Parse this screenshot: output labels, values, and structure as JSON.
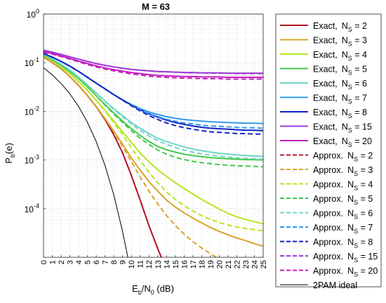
{
  "chart_data": {
    "type": "line",
    "title": "M = 63",
    "xlabel_main": "E",
    "xlabel_sub1": "b",
    "xlabel_mid": "/N",
    "xlabel_sub2": "0",
    "xlabel_tail": " (dB)",
    "ylabel_main": "P",
    "ylabel_sub": "b",
    "ylabel_tail": "(e)",
    "x_scale": "linear",
    "y_scale": "log",
    "xlim": [
      0,
      25
    ],
    "ylim": [
      1e-05,
      1
    ],
    "xticks": [
      0,
      1,
      2,
      3,
      4,
      5,
      6,
      7,
      8,
      9,
      10,
      11,
      12,
      13,
      14,
      15,
      16,
      17,
      18,
      19,
      20,
      21,
      22,
      23,
      24,
      25
    ],
    "yticks": [
      {
        "value": 1,
        "base": "10",
        "exp": "0"
      },
      {
        "value": 0.1,
        "base": "10",
        "exp": "-1"
      },
      {
        "value": 0.01,
        "base": "10",
        "exp": "-2"
      },
      {
        "value": 0.001,
        "base": "10",
        "exp": "-3"
      },
      {
        "value": 0.0001,
        "base": "10",
        "exp": "-4"
      }
    ],
    "grid": true,
    "minor_grid": true,
    "legend_position": "right, outside plot",
    "x": [
      0,
      1,
      2,
      3,
      4,
      5,
      6,
      7,
      8,
      9,
      10,
      11,
      12,
      13,
      14,
      15,
      16,
      17,
      18,
      19,
      20,
      21,
      22,
      23,
      24,
      25
    ],
    "series": [
      {
        "name": "Exact,",
        "ns": "2",
        "color": "#b2182b",
        "dash": "solid",
        "x": [
          0,
          1,
          2,
          3,
          4,
          5,
          6,
          7,
          8,
          9,
          10,
          11,
          12,
          13,
          14
        ],
        "y": [
          0.13,
          0.1,
          0.075,
          0.052,
          0.034,
          0.021,
          0.0125,
          0.0068,
          0.0033,
          0.0014,
          0.00048,
          0.00015,
          4.5e-05,
          1.5e-05,
          5.5e-06
        ]
      },
      {
        "name": "Exact,",
        "ns": "3",
        "color": "#d6a52a",
        "dash": "solid",
        "y": [
          0.13,
          0.1,
          0.075,
          0.052,
          0.034,
          0.021,
          0.0125,
          0.0071,
          0.0039,
          0.0021,
          0.0011,
          0.00062,
          0.00036,
          0.00023,
          0.00015,
          0.000108,
          8.2e-05,
          6.4e-05,
          5.1e-05,
          4.1e-05,
          3.4e-05,
          2.9e-05,
          2.5e-05,
          2.2e-05,
          1.9e-05,
          1.7e-05
        ]
      },
      {
        "name": "Exact,",
        "ns": "4",
        "color": "#b5e61d",
        "dash": "solid",
        "y": [
          0.14,
          0.11,
          0.083,
          0.06,
          0.041,
          0.027,
          0.017,
          0.0104,
          0.0063,
          0.0038,
          0.0023,
          0.0014,
          0.00092,
          0.00063,
          0.00046,
          0.00034,
          0.00026,
          0.0002,
          0.000155,
          0.000122,
          9.8e-05,
          8e-05,
          6.8e-05,
          6e-05,
          5.4e-05,
          4.9e-05
        ]
      },
      {
        "name": "Exact,",
        "ns": "5",
        "color": "#3fc94a",
        "dash": "solid",
        "y": [
          0.145,
          0.115,
          0.089,
          0.066,
          0.047,
          0.032,
          0.021,
          0.0138,
          0.0092,
          0.0063,
          0.0044,
          0.0032,
          0.0024,
          0.0019,
          0.00162,
          0.00145,
          0.00132,
          0.00123,
          0.00117,
          0.00112,
          0.00109,
          0.00106,
          0.00104,
          0.00102,
          0.00101,
          0.001
        ]
      },
      {
        "name": "Exact,",
        "ns": "6",
        "color": "#6fd6c8",
        "dash": "solid",
        "y": [
          0.15,
          0.12,
          0.093,
          0.07,
          0.05,
          0.035,
          0.024,
          0.0163,
          0.0114,
          0.0081,
          0.0059,
          0.0045,
          0.0035,
          0.0028,
          0.0024,
          0.0021,
          0.00185,
          0.00168,
          0.00155,
          0.00145,
          0.00137,
          0.00132,
          0.00127,
          0.00124,
          0.00121,
          0.00119
        ]
      },
      {
        "name": "Exact,",
        "ns": "7",
        "color": "#2f9bf0",
        "dash": "solid",
        "y": [
          0.155,
          0.13,
          0.106,
          0.085,
          0.066,
          0.05,
          0.038,
          0.029,
          0.022,
          0.0172,
          0.0138,
          0.0114,
          0.0097,
          0.0086,
          0.0078,
          0.0072,
          0.0068,
          0.0065,
          0.0063,
          0.0061,
          0.006,
          0.0059,
          0.0058,
          0.0057,
          0.0057,
          0.0056
        ]
      },
      {
        "name": "Exact,",
        "ns": "8",
        "color": "#1024c8",
        "dash": "solid",
        "y": [
          0.155,
          0.13,
          0.106,
          0.085,
          0.066,
          0.05,
          0.038,
          0.029,
          0.022,
          0.0172,
          0.0135,
          0.0108,
          0.0089,
          0.0076,
          0.0066,
          0.0059,
          0.0054,
          0.005,
          0.0047,
          0.0045,
          0.0044,
          0.0043,
          0.0042,
          0.0041,
          0.0041,
          0.004
        ]
      },
      {
        "name": "Exact,",
        "ns": "15",
        "color": "#9b3cd8",
        "dash": "solid",
        "y": [
          0.18,
          0.165,
          0.148,
          0.132,
          0.118,
          0.106,
          0.096,
          0.088,
          0.082,
          0.077,
          0.073,
          0.07,
          0.068,
          0.066,
          0.065,
          0.064,
          0.063,
          0.063,
          0.062,
          0.062,
          0.062,
          0.061,
          0.061,
          0.061,
          0.061,
          0.061
        ]
      },
      {
        "name": "Exact,",
        "ns": "20",
        "color": "#c41fbf",
        "dash": "solid",
        "y": [
          0.17,
          0.155,
          0.138,
          0.122,
          0.108,
          0.096,
          0.086,
          0.078,
          0.072,
          0.067,
          0.063,
          0.06,
          0.057,
          0.055,
          0.054,
          0.053,
          0.052,
          0.052,
          0.051,
          0.051,
          0.051,
          0.05,
          0.05,
          0.05,
          0.05,
          0.05
        ]
      },
      {
        "name": "Approx.",
        "ns": "2",
        "color": "#b2182b",
        "dash": "dashed",
        "x": [
          0,
          1,
          2,
          3,
          4,
          5,
          6,
          7,
          8,
          9,
          10,
          11,
          12,
          13,
          14
        ],
        "y": [
          0.13,
          0.1,
          0.075,
          0.052,
          0.034,
          0.021,
          0.0125,
          0.0068,
          0.0033,
          0.0014,
          0.00048,
          0.00015,
          4.5e-05,
          1.5e-05,
          5.5e-06
        ]
      },
      {
        "name": "Approx.",
        "ns": "3",
        "color": "#d6a52a",
        "dash": "dashed",
        "x": [
          0,
          1,
          2,
          3,
          4,
          5,
          6,
          7,
          8,
          9,
          10,
          11,
          12,
          13,
          14,
          15,
          16,
          17,
          18,
          19,
          20,
          21,
          22
        ],
        "y": [
          0.13,
          0.1,
          0.075,
          0.052,
          0.034,
          0.021,
          0.0125,
          0.0071,
          0.0038,
          0.0019,
          0.00092,
          0.00045,
          0.00023,
          0.000125,
          7.2e-05,
          4.5e-05,
          3e-05,
          2.1e-05,
          1.55e-05,
          1.18e-05,
          9.3e-06,
          7.5e-06,
          6.2e-06
        ]
      },
      {
        "name": "Approx.",
        "ns": "4",
        "color": "#b5e61d",
        "dash": "dashed",
        "y": [
          0.14,
          0.11,
          0.083,
          0.06,
          0.041,
          0.027,
          0.017,
          0.0102,
          0.0059,
          0.0033,
          0.0018,
          0.00098,
          0.00056,
          0.00034,
          0.00022,
          0.000155,
          0.000115,
          9e-05,
          7.2e-05,
          6e-05,
          5.2e-05,
          4.6e-05,
          4.2e-05,
          3.9e-05,
          3.7e-05,
          3.5e-05
        ]
      },
      {
        "name": "Approx.",
        "ns": "5",
        "color": "#3fc94a",
        "dash": "dashed",
        "y": [
          0.145,
          0.115,
          0.089,
          0.066,
          0.047,
          0.032,
          0.021,
          0.0135,
          0.0088,
          0.0059,
          0.004,
          0.0028,
          0.0021,
          0.0016,
          0.00132,
          0.00114,
          0.00102,
          0.00094,
          0.00088,
          0.00084,
          0.0008,
          0.00078,
          0.00076,
          0.00075,
          0.00074,
          0.00073
        ]
      },
      {
        "name": "Approx.",
        "ns": "6",
        "color": "#6fd6c8",
        "dash": "dashed",
        "y": [
          0.15,
          0.12,
          0.093,
          0.07,
          0.05,
          0.035,
          0.024,
          0.016,
          0.011,
          0.0077,
          0.0055,
          0.0041,
          0.0031,
          0.0025,
          0.0021,
          0.0018,
          0.0016,
          0.00145,
          0.00134,
          0.00126,
          0.0012,
          0.00115,
          0.00111,
          0.00108,
          0.00106,
          0.00104
        ]
      },
      {
        "name": "Approx.",
        "ns": "7",
        "color": "#2f9bf0",
        "dash": "dashed",
        "y": [
          0.155,
          0.13,
          0.106,
          0.085,
          0.066,
          0.05,
          0.038,
          0.029,
          0.022,
          0.017,
          0.0134,
          0.0108,
          0.009,
          0.0078,
          0.0069,
          0.0063,
          0.0058,
          0.0055,
          0.0052,
          0.005,
          0.0049,
          0.0048,
          0.0047,
          0.0046,
          0.0046,
          0.0045
        ]
      },
      {
        "name": "Approx.",
        "ns": "8",
        "color": "#1024c8",
        "dash": "dashed",
        "y": [
          0.155,
          0.13,
          0.106,
          0.085,
          0.066,
          0.05,
          0.038,
          0.029,
          0.022,
          0.017,
          0.013,
          0.0102,
          0.0082,
          0.0068,
          0.0058,
          0.0051,
          0.0046,
          0.0043,
          0.004,
          0.0038,
          0.0037,
          0.0036,
          0.0035,
          0.0035,
          0.0034,
          0.0034
        ]
      },
      {
        "name": "Approx.",
        "ns": "15",
        "color": "#9b3cd8",
        "dash": "dashed",
        "y": [
          0.18,
          0.165,
          0.148,
          0.132,
          0.118,
          0.106,
          0.096,
          0.088,
          0.082,
          0.077,
          0.073,
          0.07,
          0.068,
          0.066,
          0.065,
          0.064,
          0.063,
          0.062,
          0.062,
          0.061,
          0.061,
          0.061,
          0.06,
          0.06,
          0.06,
          0.06
        ]
      },
      {
        "name": "Approx.",
        "ns": "20",
        "color": "#c41fbf",
        "dash": "dashed",
        "y": [
          0.165,
          0.15,
          0.134,
          0.118,
          0.104,
          0.092,
          0.082,
          0.074,
          0.068,
          0.063,
          0.059,
          0.056,
          0.053,
          0.051,
          0.05,
          0.049,
          0.048,
          0.048,
          0.047,
          0.047,
          0.047,
          0.046,
          0.046,
          0.046,
          0.046,
          0.046
        ]
      },
      {
        "name": "2PAM ideal",
        "ns": "",
        "color": "#000000",
        "dash": "thin",
        "x": [
          0,
          1,
          2,
          3,
          4,
          5,
          6,
          7,
          8,
          9,
          9.6
        ],
        "y": [
          0.0786,
          0.0563,
          0.0375,
          0.0229,
          0.0125,
          0.00595,
          0.00239,
          0.000773,
          0.000191,
          3.36e-05,
          1e-05
        ]
      }
    ]
  }
}
